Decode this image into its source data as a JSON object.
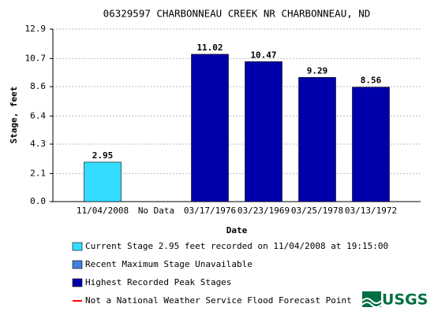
{
  "chart_data": {
    "type": "bar",
    "title": "06329597 CHARBONNEAU CREEK NR CHARBONNEAU, ND",
    "x_label": "Date",
    "y_label": "Stage, feet",
    "categories": [
      "11/04/2008",
      "No Data",
      "03/17/1976",
      "03/23/1969",
      "03/25/1978",
      "03/13/1972"
    ],
    "series": [
      {
        "name": "Current Stage 2.95 feet recorded on 11/04/2008 at 19:15:00",
        "color": "#33ddff",
        "values": [
          2.95,
          null,
          null,
          null,
          null,
          null
        ]
      },
      {
        "name": "Recent Maximum Stage Unavailable",
        "color": "#3f7fdf",
        "values": [
          null,
          null,
          null,
          null,
          null,
          null
        ]
      },
      {
        "name": "Highest Recorded Peak Stages",
        "color": "#0000aa",
        "values": [
          null,
          null,
          11.02,
          10.47,
          9.29,
          8.56
        ]
      }
    ],
    "reference_legend": {
      "name": "Not a National Weather Service Flood Forecast Point",
      "color": "#ff0000"
    },
    "ylim": [
      0,
      12.9
    ],
    "yticks": [
      {
        "value": 0,
        "label": "0.0"
      },
      2.1,
      4.3,
      6.4,
      8.6,
      10.7,
      12.9
    ],
    "grid": true,
    "logo": "USGS"
  }
}
